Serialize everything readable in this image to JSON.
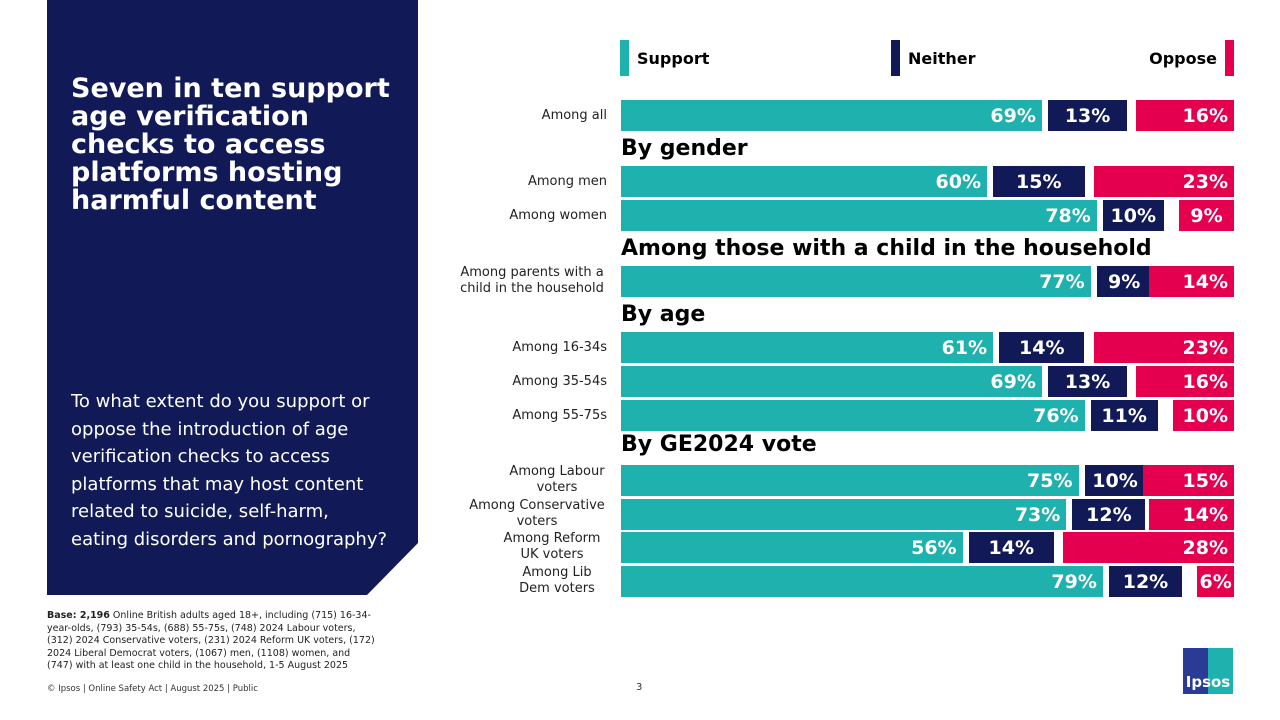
{
  "title": "Seven in ten support age verification checks to access platforms hosting harmful content",
  "question": "To what extent do you support or oppose the introduction of age verification checks to access platforms that may host content related to suicide, self-harm, eating disorders and pornography?",
  "base_label": "Base: 2,196",
  "base_text": " Online British adults aged 18+, including (715) 16-34-year-olds, (793) 35-54s, (688) 55-75s, (748) 2024 Labour voters, (312) 2024 Conservative voters, (231) 2024 Reform UK voters, (172) 2024 Liberal Democrat voters, (1067) men, (1108) women, and (747) with at least one child in the household, 1-5 August 2025",
  "footer": "© Ipsos | Online Safety Act | August 2025 | Public",
  "page_number": "3",
  "logo": "Ipsos",
  "chart_data": {
    "type": "bar",
    "stacked": true,
    "orientation": "horizontal",
    "legend": [
      "Support",
      "Neither",
      "Oppose"
    ],
    "colors": {
      "Support": "#1fb1ad",
      "Neither": "#111a57",
      "Oppose": "#e5004f"
    },
    "groups": [
      "",
      "By gender",
      "Among those with a child in the household",
      "By age",
      "By GE2024 vote"
    ],
    "rows": [
      {
        "group": 0,
        "label": "Among all",
        "values": [
          69,
          13,
          16
        ]
      },
      {
        "group": 1,
        "label": "Among men",
        "values": [
          60,
          15,
          23
        ]
      },
      {
        "group": 1,
        "label": "Among women",
        "values": [
          78,
          10,
          9
        ]
      },
      {
        "group": 2,
        "label": "Among parents with a child in the household",
        "values": [
          77,
          9,
          14
        ]
      },
      {
        "group": 3,
        "label": "Among 16-34s",
        "values": [
          61,
          14,
          23
        ]
      },
      {
        "group": 3,
        "label": "Among 35-54s",
        "values": [
          69,
          13,
          16
        ]
      },
      {
        "group": 3,
        "label": "Among 55-75s",
        "values": [
          76,
          11,
          10
        ]
      },
      {
        "group": 4,
        "label": "Among Labour voters",
        "values": [
          75,
          10,
          15
        ]
      },
      {
        "group": 4,
        "label": "Among Conservative voters",
        "values": [
          73,
          12,
          14
        ]
      },
      {
        "group": 4,
        "label": "Among Reform UK voters",
        "values": [
          56,
          14,
          28
        ]
      },
      {
        "group": 4,
        "label": "Among Lib Dem voters",
        "values": [
          79,
          12,
          6
        ]
      }
    ]
  }
}
